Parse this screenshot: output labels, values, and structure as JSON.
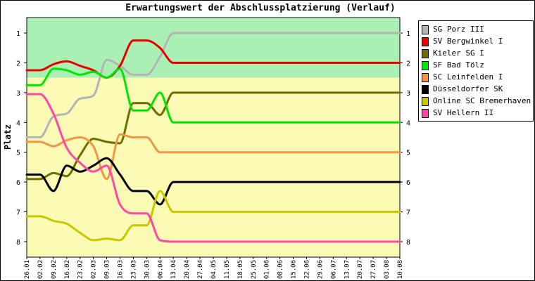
{
  "chart_data": {
    "type": "line",
    "title": "Erwartungswert der Abschlussplatzierung (Verlauf)",
    "ylabel": "Platz",
    "xlabel": "",
    "ylim": [
      1,
      8
    ],
    "y_inverted": true,
    "yticks": [
      1,
      2,
      3,
      4,
      5,
      6,
      7,
      8
    ],
    "legend_position": "right",
    "bands": [
      {
        "from": 0.5,
        "to": 2.5,
        "color": "#aaf0b4"
      },
      {
        "from": 2.5,
        "to": 8.5,
        "color": "#fafab4"
      }
    ],
    "x": [
      "26.01",
      "02.02",
      "09.02",
      "16.02",
      "23.02",
      "02.03",
      "09.03",
      "16.03",
      "23.03",
      "30.03",
      "06.04",
      "13.04",
      "20.04",
      "27.04",
      "04.05",
      "11.05",
      "18.05",
      "25.05",
      "01.06",
      "08.06",
      "15.06",
      "22.06",
      "29.06",
      "06.07",
      "13.07",
      "20.07",
      "27.07",
      "03.08",
      "10.08"
    ],
    "series": [
      {
        "name": "SG Porz III",
        "color": "#b4b4b4",
        "values": [
          4.5,
          4.5,
          3.8,
          3.7,
          3.2,
          3.1,
          1.9,
          2.1,
          2.4,
          2.4,
          1.8,
          1,
          1,
          1,
          1,
          1,
          1,
          1,
          1,
          1,
          1,
          1,
          1,
          1,
          1,
          1,
          1,
          1,
          1
        ]
      },
      {
        "name": "SV Bergwinkel I",
        "color": "#e60000",
        "values": [
          2.25,
          2.25,
          2.05,
          1.95,
          2.1,
          2.25,
          2.5,
          2.1,
          1.25,
          1.25,
          1.5,
          2,
          2,
          2,
          2,
          2,
          2,
          2,
          2,
          2,
          2,
          2,
          2,
          2,
          2,
          2,
          2,
          2,
          2
        ]
      },
      {
        "name": "Kieler SG I",
        "color": "#6e6e00",
        "values": [
          5.9,
          5.9,
          5.7,
          5.8,
          5.1,
          4.55,
          4.65,
          4.7,
          3.35,
          3.35,
          3.75,
          3,
          3,
          3,
          3,
          3,
          3,
          3,
          3,
          3,
          3,
          3,
          3,
          3,
          3,
          3,
          3,
          3,
          3
        ]
      },
      {
        "name": "SF Bad Tölz",
        "color": "#00e600",
        "values": [
          2.75,
          2.75,
          2.2,
          2.25,
          2.4,
          2.3,
          2.5,
          2.2,
          3.6,
          3.6,
          3,
          4,
          4,
          4,
          4,
          4,
          4,
          4,
          4,
          4,
          4,
          4,
          4,
          4,
          4,
          4,
          4,
          4,
          4
        ]
      },
      {
        "name": "SC Leinfelden I",
        "color": "#f09646",
        "values": [
          4.65,
          4.65,
          4.8,
          4.6,
          4.5,
          4.8,
          5.9,
          4.4,
          4.5,
          4.5,
          5,
          5,
          5,
          5,
          5,
          5,
          5,
          5,
          5,
          5,
          5,
          5,
          5,
          5,
          5,
          5,
          5,
          5,
          5
        ]
      },
      {
        "name": "Düsseldorfer SK",
        "color": "#000000",
        "values": [
          5.75,
          5.75,
          6.3,
          5.45,
          5.65,
          5.45,
          5.2,
          5.75,
          6.3,
          6.3,
          6.75,
          6,
          6,
          6,
          6,
          6,
          6,
          6,
          6,
          6,
          6,
          6,
          6,
          6,
          6,
          6,
          6,
          6,
          6
        ]
      },
      {
        "name": "Online SC Bremerhaven I",
        "color": "#c8c800",
        "values": [
          7.15,
          7.15,
          7.3,
          7.4,
          7.7,
          7.95,
          7.9,
          7.95,
          7.45,
          7.45,
          6.3,
          7,
          7,
          7,
          7,
          7,
          7,
          7,
          7,
          7,
          7,
          7,
          7,
          7,
          7,
          7,
          7,
          7,
          7
        ]
      },
      {
        "name": "SV Hellern II",
        "color": "#ff46aa",
        "values": [
          3.05,
          3.05,
          3.7,
          4.85,
          5.35,
          5.65,
          5.45,
          6.75,
          7.05,
          7.05,
          7.95,
          8,
          8,
          8,
          8,
          8,
          8,
          8,
          8,
          8,
          8,
          8,
          8,
          8,
          8,
          8,
          8,
          8,
          8
        ]
      }
    ]
  }
}
